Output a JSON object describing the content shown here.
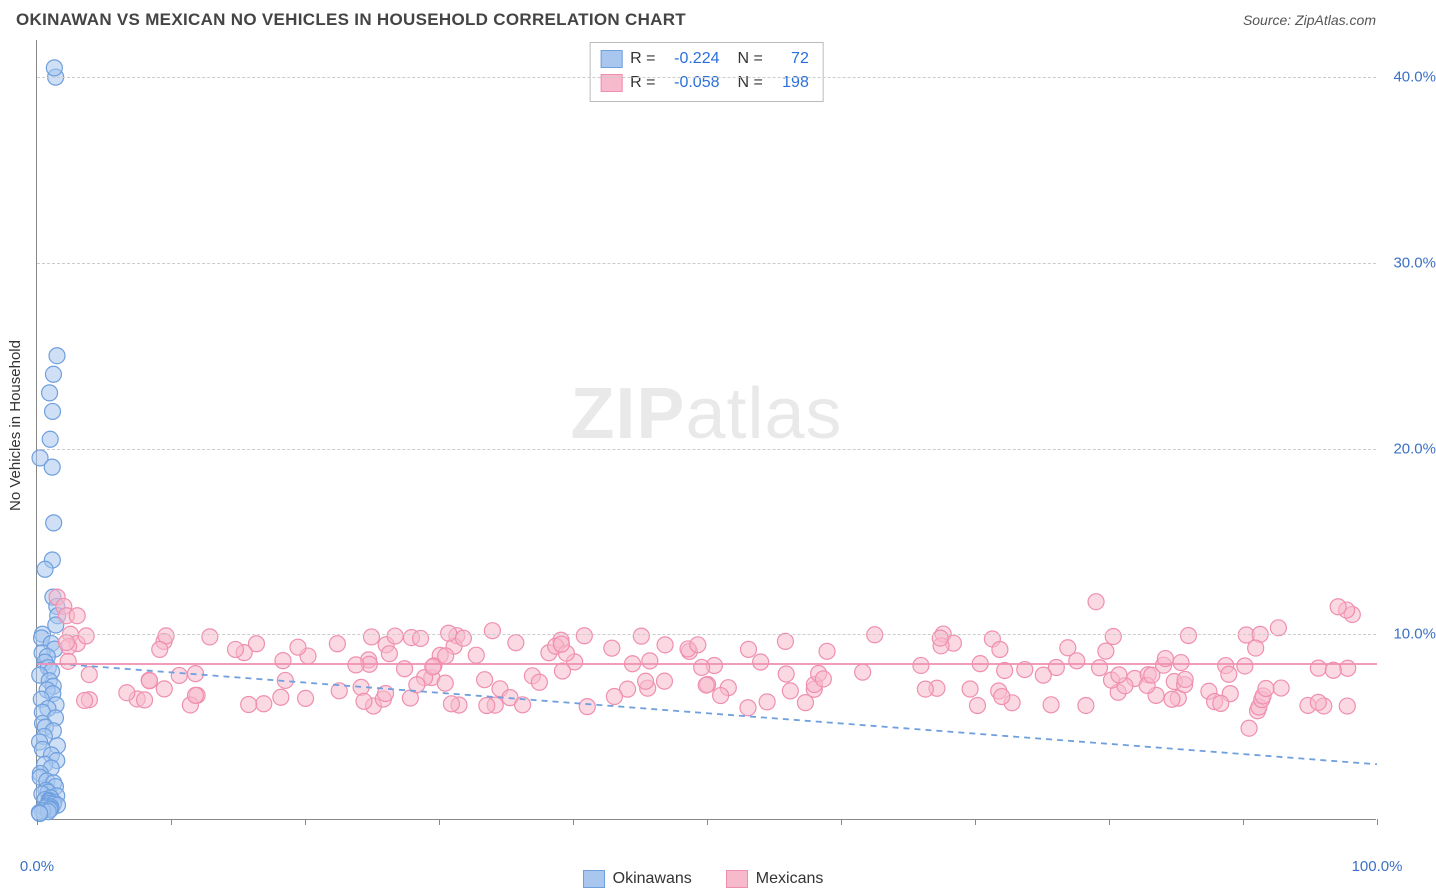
{
  "title": "OKINAWAN VS MEXICAN NO VEHICLES IN HOUSEHOLD CORRELATION CHART",
  "source_label": "Source: ",
  "source_name": "ZipAtlas.com",
  "watermark_a": "ZIP",
  "watermark_b": "atlas",
  "chart": {
    "type": "scatter",
    "ylabel": "No Vehicles in Household",
    "xlim": [
      0,
      100
    ],
    "ylim": [
      0,
      42
    ],
    "ytick_values": [
      10,
      20,
      30,
      40
    ],
    "ytick_labels": [
      "10.0%",
      "20.0%",
      "30.0%",
      "40.0%"
    ],
    "xtick_values": [
      0,
      10,
      20,
      30,
      40,
      50,
      60,
      70,
      80,
      90,
      100
    ],
    "xtick_labels": {
      "0": "0.0%",
      "100": "100.0%"
    },
    "grid_color": "#cccccc",
    "axis_color": "#888888",
    "background_color": "#ffffff",
    "marker_radius": 8,
    "marker_stroke_width": 1.2,
    "trend_line_width": 1.8,
    "okinawan_cluster_x_max": 2.0,
    "mexican_cluster_y_center": 8.0
  },
  "series": [
    {
      "id": "okinawans",
      "label": "Okinawans",
      "fill": "#a8c6ee",
      "stroke": "#6f9fde",
      "fill_opacity": 0.55,
      "R": "-0.224",
      "N": "72",
      "trend": {
        "y_at_x0": 8.5,
        "y_at_x100": 3.0,
        "dashed": true
      }
    },
    {
      "id": "mexicans",
      "label": "Mexicans",
      "fill": "#f7b9cc",
      "stroke": "#ef8fb0",
      "fill_opacity": 0.55,
      "R": "-0.058",
      "N": "198",
      "trend": {
        "y_at_x0": 8.4,
        "y_at_x100": 8.4,
        "dashed": false
      }
    }
  ],
  "stat_labels": {
    "R": "R =",
    "N": "N ="
  }
}
